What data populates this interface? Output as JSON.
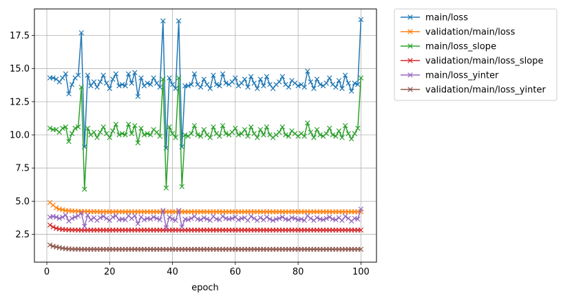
{
  "chart_data": {
    "type": "line",
    "xlabel": "epoch",
    "ylabel": "",
    "xlim": [
      -3.95,
      104.95
    ],
    "ylim": [
      0.4,
      19.5
    ],
    "xticks": [
      0,
      20,
      40,
      60,
      80,
      100
    ],
    "yticks": [
      2.5,
      5.0,
      7.5,
      10.0,
      12.5,
      15.0,
      17.5
    ],
    "ytick_labels": [
      "2.5",
      "5.0",
      "7.5",
      "10.0",
      "12.5",
      "15.0",
      "17.5"
    ],
    "xtick_labels": [
      "0",
      "20",
      "40",
      "60",
      "80",
      "100"
    ],
    "grid": true,
    "legend_position": "outside-upper-right",
    "marker": "x",
    "series": [
      {
        "name": "main/loss",
        "color": "#1f77b4",
        "x": [
          1,
          2,
          3,
          4,
          5,
          6,
          7,
          8,
          9,
          10,
          11,
          12,
          13,
          14,
          15,
          16,
          17,
          18,
          19,
          20,
          21,
          22,
          23,
          24,
          25,
          26,
          27,
          28,
          29,
          30,
          31,
          32,
          33,
          34,
          35,
          36,
          37,
          38,
          39,
          40,
          41,
          42,
          43,
          44,
          45,
          46,
          47,
          48,
          49,
          50,
          51,
          52,
          53,
          54,
          55,
          56,
          57,
          58,
          59,
          60,
          61,
          62,
          63,
          64,
          65,
          66,
          67,
          68,
          69,
          70,
          71,
          72,
          73,
          74,
          75,
          76,
          77,
          78,
          79,
          80,
          81,
          82,
          83,
          84,
          85,
          86,
          87,
          88,
          89,
          90,
          91,
          92,
          93,
          94,
          95,
          96,
          97,
          98,
          99,
          100
        ],
        "values": [
          14.3,
          14.3,
          14.2,
          14.0,
          14.3,
          14.6,
          13.1,
          13.8,
          14.3,
          14.5,
          17.7,
          9.1,
          14.5,
          13.7,
          14.0,
          13.6,
          14.0,
          14.5,
          13.9,
          13.5,
          14.2,
          14.6,
          13.7,
          13.8,
          13.7,
          14.6,
          13.9,
          14.7,
          12.9,
          14.3,
          13.7,
          13.9,
          13.8,
          14.3,
          13.9,
          13.6,
          18.6,
          9.0,
          14.3,
          13.8,
          13.5,
          18.6,
          9.1,
          13.7,
          13.7,
          13.8,
          14.6,
          13.8,
          13.6,
          14.2,
          13.8,
          13.5,
          14.5,
          13.8,
          13.7,
          14.6,
          13.9,
          13.8,
          14.0,
          14.3,
          13.7,
          13.9,
          14.2,
          13.6,
          14.4,
          13.9,
          13.5,
          14.2,
          13.7,
          14.4,
          13.8,
          13.5,
          13.8,
          14.0,
          14.4,
          13.8,
          13.6,
          14.1,
          13.9,
          13.7,
          13.8,
          13.6,
          14.8,
          14.0,
          13.5,
          14.2,
          13.8,
          13.7,
          13.9,
          14.3,
          13.8,
          13.6,
          14.1,
          13.5,
          14.5,
          13.9,
          13.3,
          13.9,
          13.8,
          18.7
        ]
      },
      {
        "name": "validation/main/loss",
        "color": "#ff7f0e",
        "x": [
          1,
          2,
          3,
          4,
          5,
          6,
          7,
          8,
          9,
          10,
          11,
          12,
          13,
          14,
          15,
          16,
          17,
          18,
          19,
          20,
          21,
          22,
          23,
          24,
          25,
          26,
          27,
          28,
          29,
          30,
          31,
          32,
          33,
          34,
          35,
          36,
          37,
          38,
          39,
          40,
          41,
          42,
          43,
          44,
          45,
          46,
          47,
          48,
          49,
          50,
          51,
          52,
          53,
          54,
          55,
          56,
          57,
          58,
          59,
          60,
          61,
          62,
          63,
          64,
          65,
          66,
          67,
          68,
          69,
          70,
          71,
          72,
          73,
          74,
          75,
          76,
          77,
          78,
          79,
          80,
          81,
          82,
          83,
          84,
          85,
          86,
          87,
          88,
          89,
          90,
          91,
          92,
          93,
          94,
          95,
          96,
          97,
          98,
          99,
          100
        ],
        "values": [
          4.9,
          4.7,
          4.5,
          4.4,
          4.35,
          4.3,
          4.28,
          4.26,
          4.25,
          4.24,
          4.23,
          4.22,
          4.22,
          4.21,
          4.21,
          4.21,
          4.2,
          4.2,
          4.2,
          4.2,
          4.2,
          4.2,
          4.2,
          4.2,
          4.2,
          4.2,
          4.2,
          4.2,
          4.2,
          4.2,
          4.2,
          4.2,
          4.2,
          4.2,
          4.2,
          4.2,
          4.2,
          4.2,
          4.2,
          4.2,
          4.2,
          4.2,
          4.2,
          4.2,
          4.2,
          4.2,
          4.2,
          4.2,
          4.2,
          4.2,
          4.2,
          4.2,
          4.2,
          4.2,
          4.2,
          4.2,
          4.2,
          4.2,
          4.2,
          4.2,
          4.2,
          4.2,
          4.2,
          4.2,
          4.2,
          4.2,
          4.2,
          4.2,
          4.2,
          4.2,
          4.2,
          4.2,
          4.2,
          4.2,
          4.2,
          4.2,
          4.2,
          4.2,
          4.2,
          4.2,
          4.2,
          4.2,
          4.2,
          4.2,
          4.2,
          4.2,
          4.2,
          4.2,
          4.2,
          4.2,
          4.2,
          4.2,
          4.2,
          4.2,
          4.2,
          4.2,
          4.2,
          4.2,
          4.2,
          4.2
        ]
      },
      {
        "name": "main/loss_slope",
        "color": "#2ca02c",
        "x": [
          1,
          2,
          3,
          4,
          5,
          6,
          7,
          8,
          9,
          10,
          11,
          12,
          13,
          14,
          15,
          16,
          17,
          18,
          19,
          20,
          21,
          22,
          23,
          24,
          25,
          26,
          27,
          28,
          29,
          30,
          31,
          32,
          33,
          34,
          35,
          36,
          37,
          38,
          39,
          40,
          41,
          42,
          43,
          44,
          45,
          46,
          47,
          48,
          49,
          50,
          51,
          52,
          53,
          54,
          55,
          56,
          57,
          58,
          59,
          60,
          61,
          62,
          63,
          64,
          65,
          66,
          67,
          68,
          69,
          70,
          71,
          72,
          73,
          74,
          75,
          76,
          77,
          78,
          79,
          80,
          81,
          82,
          83,
          84,
          85,
          86,
          87,
          88,
          89,
          90,
          91,
          92,
          93,
          94,
          95,
          96,
          97,
          98,
          99,
          100
        ],
        "values": [
          10.5,
          10.4,
          10.4,
          10.2,
          10.5,
          10.6,
          9.5,
          10.1,
          10.5,
          10.6,
          13.6,
          5.9,
          10.5,
          10.0,
          10.2,
          9.8,
          10.2,
          10.6,
          10.1,
          9.8,
          10.3,
          10.8,
          10.0,
          10.1,
          10.0,
          10.8,
          10.1,
          10.7,
          9.4,
          10.5,
          10.0,
          10.1,
          10.0,
          10.4,
          10.2,
          9.9,
          14.2,
          6.0,
          10.6,
          10.1,
          9.8,
          14.3,
          6.1,
          10.0,
          9.9,
          10.1,
          10.7,
          10.0,
          9.9,
          10.4,
          10.0,
          9.8,
          10.6,
          10.1,
          9.9,
          10.7,
          10.1,
          10.0,
          10.2,
          10.5,
          10.0,
          10.1,
          10.4,
          9.9,
          10.6,
          10.1,
          9.8,
          10.4,
          10.0,
          10.6,
          10.0,
          9.8,
          10.0,
          10.2,
          10.6,
          10.0,
          9.9,
          10.3,
          10.1,
          9.9,
          10.1,
          9.9,
          10.9,
          10.2,
          9.8,
          10.4,
          10.0,
          9.9,
          10.1,
          10.5,
          10.0,
          9.9,
          10.3,
          9.8,
          10.7,
          10.1,
          9.7,
          10.1,
          10.5,
          14.3
        ]
      },
      {
        "name": "validation/main/loss_slope",
        "color": "#d62728",
        "x": [
          1,
          2,
          3,
          4,
          5,
          6,
          7,
          8,
          9,
          10,
          11,
          12,
          13,
          14,
          15,
          16,
          17,
          18,
          19,
          20,
          21,
          22,
          23,
          24,
          25,
          26,
          27,
          28,
          29,
          30,
          31,
          32,
          33,
          34,
          35,
          36,
          37,
          38,
          39,
          40,
          41,
          42,
          43,
          44,
          45,
          46,
          47,
          48,
          49,
          50,
          51,
          52,
          53,
          54,
          55,
          56,
          57,
          58,
          59,
          60,
          61,
          62,
          63,
          64,
          65,
          66,
          67,
          68,
          69,
          70,
          71,
          72,
          73,
          74,
          75,
          76,
          77,
          78,
          79,
          80,
          81,
          82,
          83,
          84,
          85,
          86,
          87,
          88,
          89,
          90,
          91,
          92,
          93,
          94,
          95,
          96,
          97,
          98,
          99,
          100
        ],
        "values": [
          3.2,
          3.05,
          2.95,
          2.9,
          2.87,
          2.85,
          2.84,
          2.83,
          2.83,
          2.82,
          2.82,
          2.82,
          2.82,
          2.82,
          2.82,
          2.82,
          2.82,
          2.82,
          2.82,
          2.82,
          2.82,
          2.82,
          2.82,
          2.82,
          2.82,
          2.82,
          2.82,
          2.82,
          2.82,
          2.82,
          2.82,
          2.82,
          2.82,
          2.82,
          2.82,
          2.82,
          2.82,
          2.82,
          2.82,
          2.82,
          2.82,
          2.82,
          2.82,
          2.82,
          2.82,
          2.82,
          2.82,
          2.82,
          2.82,
          2.82,
          2.82,
          2.82,
          2.82,
          2.82,
          2.82,
          2.82,
          2.82,
          2.82,
          2.82,
          2.82,
          2.82,
          2.82,
          2.82,
          2.82,
          2.82,
          2.82,
          2.82,
          2.82,
          2.82,
          2.82,
          2.82,
          2.82,
          2.82,
          2.82,
          2.82,
          2.82,
          2.82,
          2.82,
          2.82,
          2.82,
          2.82,
          2.82,
          2.82,
          2.82,
          2.82,
          2.82,
          2.82,
          2.82,
          2.82,
          2.82,
          2.82,
          2.82,
          2.82,
          2.82,
          2.82,
          2.82,
          2.82,
          2.82,
          2.82,
          2.82
        ]
      },
      {
        "name": "main/loss_yinter",
        "color": "#9467bd",
        "x": [
          1,
          2,
          3,
          4,
          5,
          6,
          7,
          8,
          9,
          10,
          11,
          12,
          13,
          14,
          15,
          16,
          17,
          18,
          19,
          20,
          21,
          22,
          23,
          24,
          25,
          26,
          27,
          28,
          29,
          30,
          31,
          32,
          33,
          34,
          35,
          36,
          37,
          38,
          39,
          40,
          41,
          42,
          43,
          44,
          45,
          46,
          47,
          48,
          49,
          50,
          51,
          52,
          53,
          54,
          55,
          56,
          57,
          58,
          59,
          60,
          61,
          62,
          63,
          64,
          65,
          66,
          67,
          68,
          69,
          70,
          71,
          72,
          73,
          74,
          75,
          76,
          77,
          78,
          79,
          80,
          81,
          82,
          83,
          84,
          85,
          86,
          87,
          88,
          89,
          90,
          91,
          92,
          93,
          94,
          95,
          96,
          97,
          98,
          99,
          100
        ],
        "values": [
          3.8,
          3.85,
          3.8,
          3.7,
          3.8,
          3.95,
          3.5,
          3.7,
          3.8,
          3.9,
          4.1,
          3.1,
          3.95,
          3.6,
          3.75,
          3.55,
          3.75,
          3.85,
          3.7,
          3.55,
          3.8,
          3.9,
          3.6,
          3.65,
          3.6,
          3.9,
          3.7,
          3.9,
          3.3,
          3.8,
          3.6,
          3.7,
          3.65,
          3.8,
          3.7,
          3.6,
          4.3,
          3.0,
          3.8,
          3.65,
          3.55,
          4.3,
          3.05,
          3.65,
          3.6,
          3.7,
          3.85,
          3.65,
          3.6,
          3.75,
          3.65,
          3.55,
          3.85,
          3.65,
          3.6,
          3.85,
          3.7,
          3.65,
          3.7,
          3.8,
          3.6,
          3.7,
          3.75,
          3.55,
          3.85,
          3.7,
          3.55,
          3.75,
          3.6,
          3.8,
          3.65,
          3.55,
          3.65,
          3.7,
          3.8,
          3.65,
          3.6,
          3.75,
          3.7,
          3.6,
          3.65,
          3.55,
          3.9,
          3.7,
          3.55,
          3.75,
          3.65,
          3.6,
          3.7,
          3.8,
          3.65,
          3.6,
          3.75,
          3.55,
          3.85,
          3.7,
          3.5,
          3.7,
          3.65,
          4.4
        ]
      },
      {
        "name": "validation/main/loss_yinter",
        "color": "#8c564b",
        "x": [
          1,
          2,
          3,
          4,
          5,
          6,
          7,
          8,
          9,
          10,
          11,
          12,
          13,
          14,
          15,
          16,
          17,
          18,
          19,
          20,
          21,
          22,
          23,
          24,
          25,
          26,
          27,
          28,
          29,
          30,
          31,
          32,
          33,
          34,
          35,
          36,
          37,
          38,
          39,
          40,
          41,
          42,
          43,
          44,
          45,
          46,
          47,
          48,
          49,
          50,
          51,
          52,
          53,
          54,
          55,
          56,
          57,
          58,
          59,
          60,
          61,
          62,
          63,
          64,
          65,
          66,
          67,
          68,
          69,
          70,
          71,
          72,
          73,
          74,
          75,
          76,
          77,
          78,
          79,
          80,
          81,
          82,
          83,
          84,
          85,
          86,
          87,
          88,
          89,
          90,
          91,
          92,
          93,
          94,
          95,
          96,
          97,
          98,
          99,
          100
        ],
        "values": [
          1.7,
          1.6,
          1.55,
          1.5,
          1.45,
          1.42,
          1.4,
          1.39,
          1.38,
          1.38,
          1.37,
          1.37,
          1.37,
          1.37,
          1.37,
          1.37,
          1.37,
          1.37,
          1.37,
          1.37,
          1.37,
          1.37,
          1.37,
          1.37,
          1.37,
          1.37,
          1.37,
          1.37,
          1.37,
          1.37,
          1.37,
          1.37,
          1.37,
          1.37,
          1.37,
          1.37,
          1.37,
          1.37,
          1.37,
          1.37,
          1.37,
          1.37,
          1.37,
          1.37,
          1.37,
          1.37,
          1.37,
          1.37,
          1.37,
          1.37,
          1.37,
          1.37,
          1.37,
          1.37,
          1.37,
          1.37,
          1.37,
          1.37,
          1.37,
          1.37,
          1.37,
          1.37,
          1.37,
          1.37,
          1.37,
          1.37,
          1.37,
          1.37,
          1.37,
          1.37,
          1.37,
          1.37,
          1.37,
          1.37,
          1.37,
          1.37,
          1.37,
          1.37,
          1.37,
          1.37,
          1.37,
          1.37,
          1.37,
          1.37,
          1.37,
          1.37,
          1.37,
          1.37,
          1.37,
          1.37,
          1.37,
          1.37,
          1.37,
          1.37,
          1.37,
          1.37,
          1.37,
          1.37,
          1.37,
          1.37
        ]
      }
    ]
  }
}
